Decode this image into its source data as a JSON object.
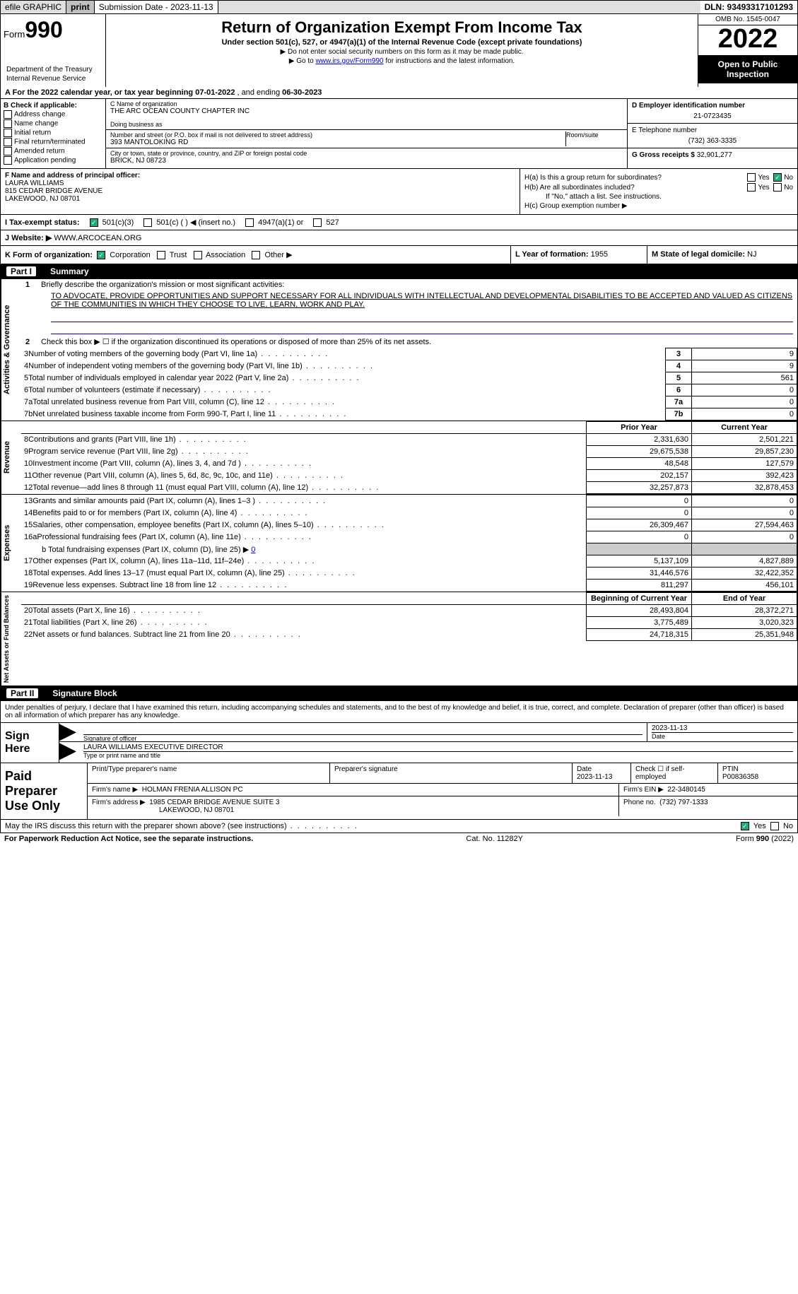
{
  "topbar": {
    "efile": "efile GRAPHIC",
    "print": "print",
    "submission": "Submission Date - 2023-11-13",
    "dln": "DLN: 93493317101293"
  },
  "header": {
    "form_label": "Form",
    "form_num": "990",
    "title": "Return of Organization Exempt From Income Tax",
    "subtitle": "Under section 501(c), 527, or 4947(a)(1) of the Internal Revenue Code (except private foundations)",
    "note1": "▶ Do not enter social security numbers on this form as it may be made public.",
    "note2_pre": "▶ Go to ",
    "note2_link": "www.irs.gov/Form990",
    "note2_post": " for instructions and the latest information.",
    "omb": "OMB No. 1545-0047",
    "year": "2022",
    "open": "Open to Public Inspection",
    "dept": "Department of the Treasury",
    "irs": "Internal Revenue Service"
  },
  "row_a": {
    "text_pre": "A For the 2022 calendar year, or tax year beginning ",
    "begin": "07-01-2022",
    "mid": "   , and ending ",
    "end": "06-30-2023"
  },
  "col_b": {
    "label": "B Check if applicable:",
    "addr": "Address change",
    "name": "Name change",
    "init": "Initial return",
    "final": "Final return/terminated",
    "amend": "Amended return",
    "app": "Application pending"
  },
  "col_c": {
    "c_label": "C Name of organization",
    "org": "THE ARC OCEAN COUNTY CHAPTER INC",
    "dba_label": "Doing business as",
    "dba": "",
    "addr_label": "Number and street (or P.O. box if mail is not delivered to street address)",
    "addr": "393 MANTOLOKING RD",
    "room_label": "Room/suite",
    "room": "",
    "city_label": "City or town, state or province, country, and ZIP or foreign postal code",
    "city": "BRICK, NJ  08723"
  },
  "col_d": {
    "d_label": "D Employer identification number",
    "ein": "21-0723435",
    "e_label": "E Telephone number",
    "phone": "(732) 363-3335",
    "g_label": "G Gross receipts $",
    "gross": "32,901,277"
  },
  "section_fh": {
    "f_label": "F Name and address of principal officer:",
    "f_name": "LAURA WILLIAMS",
    "f_addr1": "815 CEDAR BRIDGE AVENUE",
    "f_addr2": "LAKEWOOD, NJ  08701",
    "ha": "H(a)  Is this a group return for subordinates?",
    "hb": "H(b)  Are all subordinates included?",
    "hb_note": "If \"No,\" attach a list. See instructions.",
    "hc": "H(c)  Group exemption number ▶",
    "yes": "Yes",
    "no": "No"
  },
  "row_i": {
    "label": "I   Tax-exempt status:",
    "o1": "501(c)(3)",
    "o2": "501(c) (  ) ◀ (insert no.)",
    "o3": "4947(a)(1) or",
    "o4": "527"
  },
  "row_j": {
    "label": "J   Website: ▶",
    "site": "WWW.ARCOCEAN.ORG"
  },
  "row_k": {
    "label": "K Form of organization:",
    "corp": "Corporation",
    "trust": "Trust",
    "assoc": "Association",
    "other": "Other ▶",
    "l_label": "L Year of formation:",
    "l_val": "1955",
    "m_label": "M State of legal domicile:",
    "m_val": "NJ"
  },
  "part1": {
    "label": "Part I",
    "title": "Summary"
  },
  "summary": {
    "line1_label": "Briefly describe the organization's mission or most significant activities:",
    "line1_text": "TO ADVOCATE, PROVIDE OPPORTUNITIES AND SUPPORT NECESSARY FOR ALL INDIVIDUALS WITH INTELLECTUAL AND DEVELOPMENTAL DISABILITIES TO BE ACCEPTED AND VALUED AS CITIZENS OF THE COMMUNITIES IN WHICH THEY CHOOSE TO LIVE, LEARN, WORK AND PLAY.",
    "line2": "Check this box ▶ ☐ if the organization discontinued its operations or disposed of more than 25% of its net assets.",
    "vtab1": "Activities & Governance",
    "vtab2": "Revenue",
    "vtab3": "Expenses",
    "vtab4": "Net Assets or Fund Balances",
    "rows_ag": [
      {
        "n": "3",
        "d": "Number of voting members of the governing body (Part VI, line 1a)",
        "ln": "3",
        "v": "9"
      },
      {
        "n": "4",
        "d": "Number of independent voting members of the governing body (Part VI, line 1b)",
        "ln": "4",
        "v": "9"
      },
      {
        "n": "5",
        "d": "Total number of individuals employed in calendar year 2022 (Part V, line 2a)",
        "ln": "5",
        "v": "561"
      },
      {
        "n": "6",
        "d": "Total number of volunteers (estimate if necessary)",
        "ln": "6",
        "v": "0"
      },
      {
        "n": "7a",
        "d": "Total unrelated business revenue from Part VIII, column (C), line 12",
        "ln": "7a",
        "v": "0"
      },
      {
        "n": "7b",
        "d": "Net unrelated business taxable income from Form 990-T, Part I, line 11",
        "ln": "7b",
        "v": "0"
      }
    ],
    "hdr_prior": "Prior Year",
    "hdr_curr": "Current Year",
    "rows_rev": [
      {
        "n": "8",
        "d": "Contributions and grants (Part VIII, line 1h)",
        "p": "2,331,630",
        "c": "2,501,221"
      },
      {
        "n": "9",
        "d": "Program service revenue (Part VIII, line 2g)",
        "p": "29,675,538",
        "c": "29,857,230"
      },
      {
        "n": "10",
        "d": "Investment income (Part VIII, column (A), lines 3, 4, and 7d )",
        "p": "48,548",
        "c": "127,579"
      },
      {
        "n": "11",
        "d": "Other revenue (Part VIII, column (A), lines 5, 6d, 8c, 9c, 10c, and 11e)",
        "p": "202,157",
        "c": "392,423"
      },
      {
        "n": "12",
        "d": "Total revenue—add lines 8 through 11 (must equal Part VIII, column (A), line 12)",
        "p": "32,257,873",
        "c": "32,878,453"
      }
    ],
    "rows_exp": [
      {
        "n": "13",
        "d": "Grants and similar amounts paid (Part IX, column (A), lines 1–3 )",
        "p": "0",
        "c": "0"
      },
      {
        "n": "14",
        "d": "Benefits paid to or for members (Part IX, column (A), line 4)",
        "p": "0",
        "c": "0"
      },
      {
        "n": "15",
        "d": "Salaries, other compensation, employee benefits (Part IX, column (A), lines 5–10)",
        "p": "26,309,467",
        "c": "27,594,463"
      },
      {
        "n": "16a",
        "d": "Professional fundraising fees (Part IX, column (A), line 11e)",
        "p": "0",
        "c": "0"
      }
    ],
    "line16b": "b  Total fundraising expenses (Part IX, column (D), line 25) ▶",
    "line16b_val": "0",
    "rows_exp2": [
      {
        "n": "17",
        "d": "Other expenses (Part IX, column (A), lines 11a–11d, 11f–24e)",
        "p": "5,137,109",
        "c": "4,827,889"
      },
      {
        "n": "18",
        "d": "Total expenses. Add lines 13–17 (must equal Part IX, column (A), line 25)",
        "p": "31,446,576",
        "c": "32,422,352"
      },
      {
        "n": "19",
        "d": "Revenue less expenses. Subtract line 18 from line 12",
        "p": "811,297",
        "c": "456,101"
      }
    ],
    "hdr_begin": "Beginning of Current Year",
    "hdr_end": "End of Year",
    "rows_na": [
      {
        "n": "20",
        "d": "Total assets (Part X, line 16)",
        "p": "28,493,804",
        "c": "28,372,271"
      },
      {
        "n": "21",
        "d": "Total liabilities (Part X, line 26)",
        "p": "3,775,489",
        "c": "3,020,323"
      },
      {
        "n": "22",
        "d": "Net assets or fund balances. Subtract line 21 from line 20",
        "p": "24,718,315",
        "c": "25,351,948"
      }
    ]
  },
  "part2": {
    "label": "Part II",
    "title": "Signature Block"
  },
  "sig": {
    "decl": "Under penalties of perjury, I declare that I have examined this return, including accompanying schedules and statements, and to the best of my knowledge and belief, it is true, correct, and complete. Declaration of preparer (other than officer) is based on all information of which preparer has any knowledge.",
    "sign_here": "Sign Here",
    "sig_officer": "Signature of officer",
    "sig_date_label": "Date",
    "sig_date": "2023-11-13",
    "name_title": "LAURA WILLIAMS  EXECUTIVE DIRECTOR",
    "name_title_label": "Type or print name and title"
  },
  "prep": {
    "label": "Paid Preparer Use Only",
    "print_name_label": "Print/Type preparer's name",
    "print_name": "",
    "prep_sig_label": "Preparer's signature",
    "date_label": "Date",
    "date": "2023-11-13",
    "check_label": "Check ☐ if self-employed",
    "ptin_label": "PTIN",
    "ptin": "P00836358",
    "firm_name_label": "Firm's name    ▶",
    "firm_name": "HOLMAN FRENIA ALLISON PC",
    "firm_ein_label": "Firm's EIN ▶",
    "firm_ein": "22-3480145",
    "firm_addr_label": "Firm's address ▶",
    "firm_addr1": "1985 CEDAR BRIDGE AVENUE SUITE 3",
    "firm_addr2": "LAKEWOOD, NJ  08701",
    "phone_label": "Phone no.",
    "phone": "(732) 797-1333"
  },
  "may": {
    "text": "May the IRS discuss this return with the preparer shown above? (see instructions)",
    "yes": "Yes",
    "no": "No"
  },
  "footer": {
    "left": "For Paperwork Reduction Act Notice, see the separate instructions.",
    "mid": "Cat. No. 11282Y",
    "right": "Form 990 (2022)"
  }
}
